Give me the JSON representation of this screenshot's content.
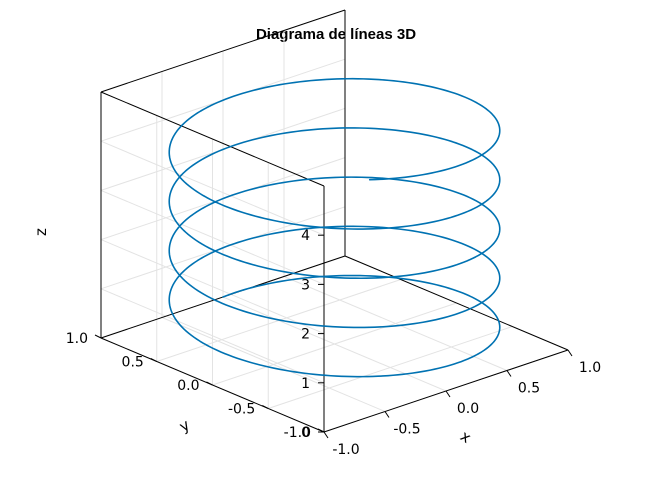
{
  "chart_data": {
    "type": "line",
    "title": "Diagrama de líneas 3D",
    "xlabel": "x",
    "ylabel": "y",
    "zlabel": "z",
    "xlim": [
      -1,
      1
    ],
    "ylim": [
      -1,
      1
    ],
    "zlim": [
      0,
      5
    ],
    "x_ticks": [
      "-1.0",
      "-0.5",
      "0.0",
      "0.5",
      "1.0"
    ],
    "y_ticks": [
      "1.0",
      "0.5",
      "0.0",
      "-0.5",
      "-1.0"
    ],
    "z_ticks": [
      "0",
      "1",
      "2",
      "3",
      "4"
    ],
    "grid": true,
    "series": [
      {
        "color": "#0072b2",
        "parametric": {
          "x": "sin(t)",
          "y": "cos(t)",
          "z": "t/(2π)",
          "t_range": [
            0,
            28.8
          ]
        }
      }
    ]
  }
}
